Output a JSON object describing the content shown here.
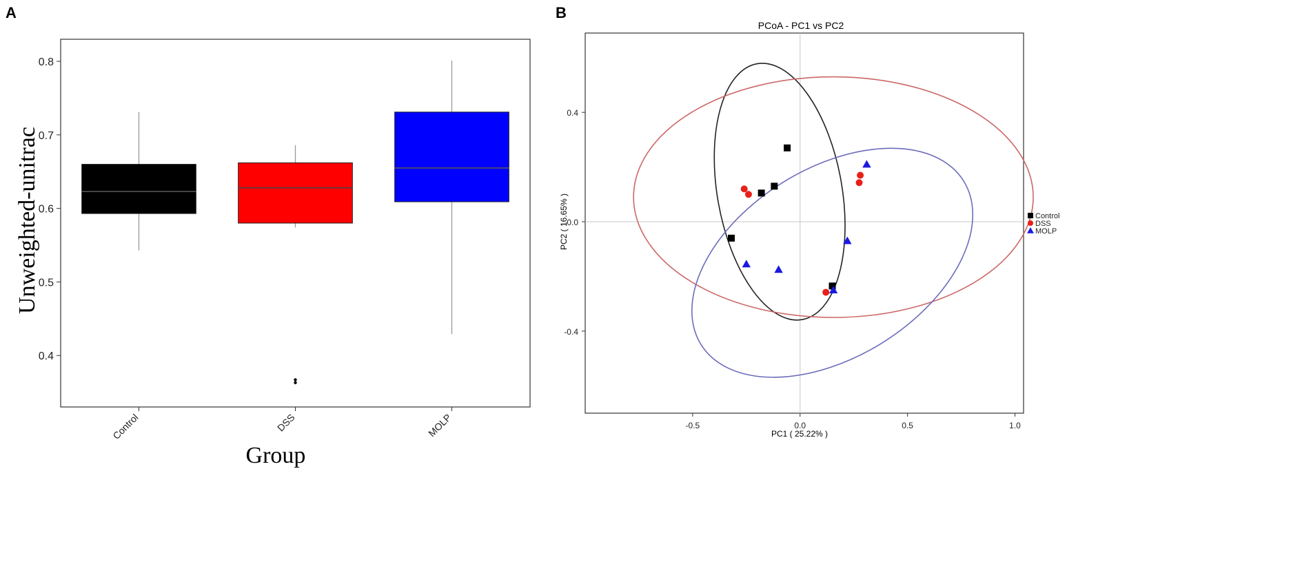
{
  "panels": {
    "a_letter": "A",
    "b_letter": "B"
  },
  "chart_data": [
    {
      "type": "box",
      "panel": "A",
      "title": "",
      "xlabel": "Group",
      "ylabel": "Unweighted-unitrac",
      "ylim": [
        0.33,
        0.83
      ],
      "yticks": [
        "0.4",
        "0.5",
        "0.6",
        "0.7",
        "0.8"
      ],
      "grid": false,
      "categories": [
        "Control",
        "DSS",
        "MOLP"
      ],
      "boxes": [
        {
          "category": "Control",
          "whisker_low": 0.543,
          "q1": 0.593,
          "median": 0.623,
          "q3": 0.66,
          "whisker_high": 0.731,
          "outliers": [],
          "color": "#000000",
          "median_color": "#555555"
        },
        {
          "category": "DSS",
          "whisker_low": 0.574,
          "q1": 0.58,
          "median": 0.628,
          "q3": 0.662,
          "whisker_high": 0.686,
          "outliers": [
            0.363,
            0.367
          ],
          "color": "#ff0000",
          "median_color": "#444444"
        },
        {
          "category": "MOLP",
          "whisker_low": 0.429,
          "q1": 0.609,
          "median": 0.655,
          "q3": 0.731,
          "whisker_high": 0.801,
          "outliers": [],
          "color": "#0000ff",
          "median_color": "#555555"
        }
      ]
    },
    {
      "type": "scatter",
      "panel": "B",
      "title": "PCoA - PC1 vs PC2",
      "xlabel": "PC1 ( 25.22% )",
      "ylabel": "PC2 ( 16.65% )",
      "xlim": [
        -1.0,
        1.04
      ],
      "ylim": [
        -0.7,
        0.69
      ],
      "xticks": [
        "-0.5",
        "0.0",
        "0.5",
        "1.0"
      ],
      "yticks": [
        "-0.4",
        "0.0",
        "0.4"
      ],
      "grid": false,
      "legend_position": "right",
      "series": [
        {
          "name": "Control",
          "marker": "square",
          "color": "#000000",
          "points": [
            [
              -0.06,
              0.27
            ],
            [
              -0.12,
              0.13
            ],
            [
              -0.18,
              0.105
            ],
            [
              -0.32,
              -0.06
            ],
            [
              0.15,
              -0.235
            ]
          ]
        },
        {
          "name": "DSS",
          "marker": "circle",
          "color": "#e8201a",
          "points": [
            [
              -0.26,
              0.12
            ],
            [
              -0.24,
              0.1
            ],
            [
              0.28,
              0.17
            ],
            [
              0.275,
              0.143
            ],
            [
              0.12,
              -0.258
            ]
          ]
        },
        {
          "name": "MOLP",
          "marker": "triangle",
          "color": "#1a1adf",
          "points": [
            [
              0.31,
              0.21
            ],
            [
              0.22,
              -0.07
            ],
            [
              -0.25,
              -0.155
            ],
            [
              -0.1,
              -0.175
            ],
            [
              0.155,
              -0.25
            ]
          ]
        }
      ],
      "ellipses": [
        {
          "group": "Control",
          "color": "#222222",
          "cx": -0.095,
          "cy": 0.11,
          "rx": 0.29,
          "ry": 0.475,
          "angle": -10
        },
        {
          "group": "DSS",
          "color": "#cc6666",
          "cx": 0.155,
          "cy": 0.09,
          "rx": 0.93,
          "ry": 0.44,
          "angle": 0
        },
        {
          "group": "MOLP",
          "color": "#6b6bbb",
          "cx": 0.15,
          "cy": -0.15,
          "rx": 0.72,
          "ry": 0.345,
          "angle": -32
        }
      ]
    }
  ]
}
